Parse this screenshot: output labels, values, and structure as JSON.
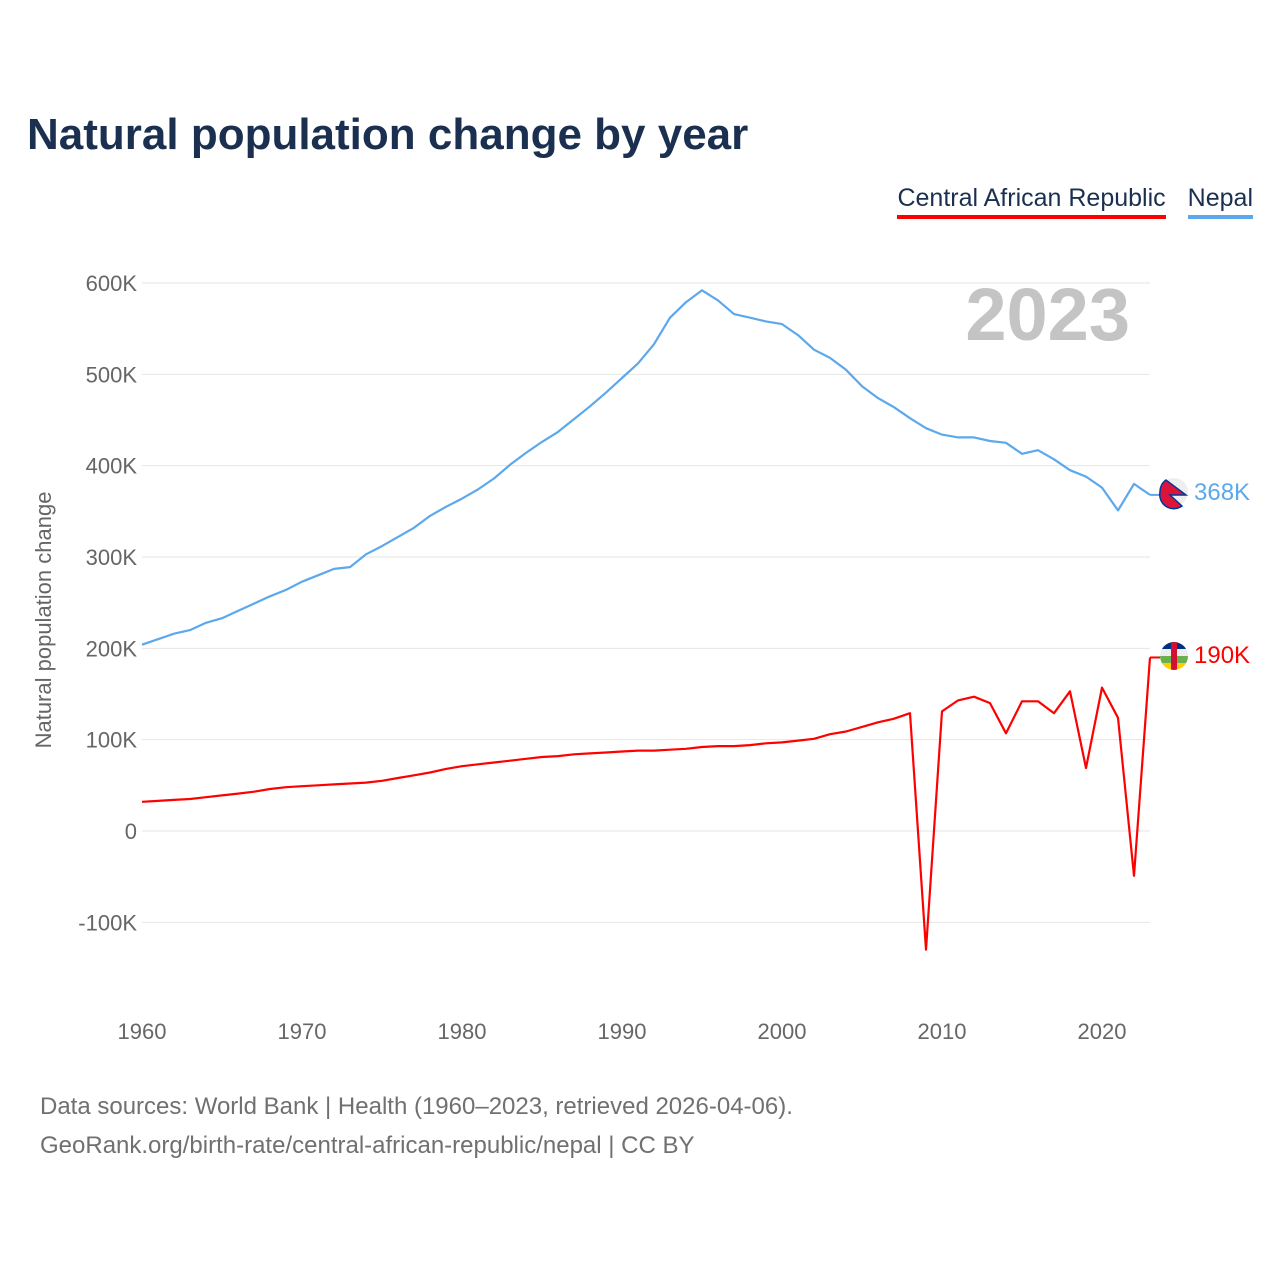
{
  "title": "Natural population change by year",
  "legend": [
    {
      "label": "Central African Republic",
      "color": "#ff0000"
    },
    {
      "label": "Nepal",
      "color": "#5ca8ec"
    }
  ],
  "year_watermark": "2023",
  "end_labels": {
    "nepal": "368K",
    "car": "190K"
  },
  "icons": {
    "nepal": "nepal-flag-icon",
    "car": "central-african-republic-flag-icon"
  },
  "footer": {
    "line1": "Data sources: World Bank | Health (1960–2023, retrieved 2026-04-06).",
    "line2": "GeoRank.org/birth-rate/central-african-republic/nepal | CC BY"
  },
  "chart_data": {
    "type": "line",
    "title": "Natural population change by year",
    "xlabel": "",
    "ylabel": "Natural population change",
    "xlim": [
      1960,
      2023
    ],
    "ylim": [
      -150000,
      600000
    ],
    "x_ticks": [
      1960,
      1970,
      1980,
      1990,
      2000,
      2010,
      2020
    ],
    "x_tick_labels": [
      "1960",
      "1970",
      "1980",
      "1990",
      "2000",
      "2010",
      "2020"
    ],
    "y_ticks": [
      -100000,
      0,
      100000,
      200000,
      300000,
      400000,
      500000,
      600000
    ],
    "y_tick_labels": [
      "-100K",
      "0",
      "100K",
      "200K",
      "300K",
      "400K",
      "500K",
      "600K"
    ],
    "grid": true,
    "legend_position": "top-right",
    "x_start": 1960,
    "series": [
      {
        "name": "Nepal",
        "color": "#5ca8ec",
        "values_k": [
          204,
          210,
          216,
          220,
          228,
          233,
          241,
          249,
          257,
          264,
          273,
          280,
          287,
          289,
          303,
          312,
          322,
          332,
          345,
          355,
          364,
          374,
          386,
          401,
          414,
          426,
          437,
          451,
          465,
          480,
          496,
          512,
          533,
          562,
          579,
          592,
          581,
          566,
          562,
          558,
          555,
          543,
          527,
          518,
          505,
          487,
          474,
          464,
          452,
          441,
          434,
          431,
          431,
          427,
          425,
          413,
          417,
          407,
          395,
          388,
          376,
          351,
          380,
          368
        ]
      },
      {
        "name": "Central African Republic",
        "color": "#ff0000",
        "values_k": [
          32,
          33,
          34,
          35,
          37,
          39,
          41,
          43,
          46,
          48,
          49,
          50,
          51,
          52,
          53,
          55,
          58,
          61,
          64,
          68,
          71,
          73,
          75,
          77,
          79,
          81,
          82,
          84,
          85,
          86,
          87,
          88,
          88,
          89,
          90,
          92,
          93,
          93,
          94,
          96,
          97,
          99,
          101,
          106,
          109,
          114,
          119,
          123,
          129,
          -130,
          131,
          143,
          147,
          140,
          107,
          142,
          142,
          129,
          153,
          69,
          157,
          124,
          -49,
          190
        ]
      }
    ]
  }
}
